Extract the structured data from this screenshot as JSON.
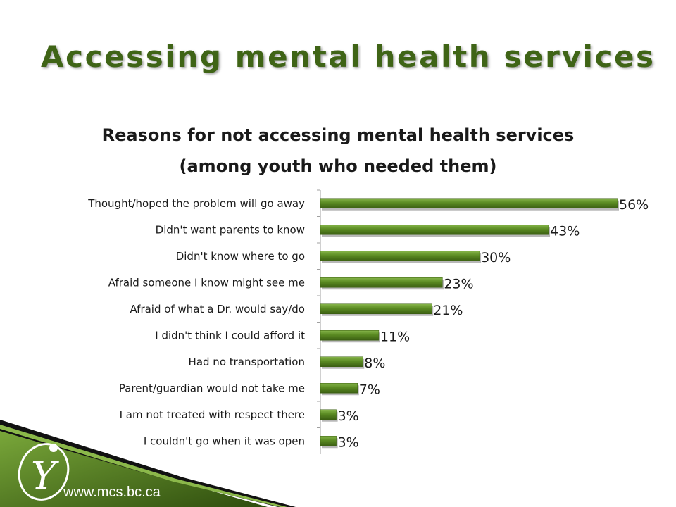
{
  "slide": {
    "title": "Accessing mental health services",
    "footer_url": "www.mcs.bc.ca",
    "accent_color": "#3f6416",
    "bar_color": "#5a8a22"
  },
  "chart_data": {
    "type": "bar",
    "orientation": "horizontal",
    "title": "Reasons for not accessing mental health services",
    "subtitle": "(among youth who needed them)",
    "categories": [
      "Thought/hoped the problem will go away",
      "Didn't want parents to know",
      "Didn't know where to go",
      "Afraid someone I know might see me",
      "Afraid of what a Dr. would say/do",
      "I didn't think I could afford it",
      "Had no transportation",
      "Parent/guardian would not take me",
      "I am not treated with respect there",
      "I couldn't go when it was open"
    ],
    "values": [
      56,
      43,
      30,
      23,
      21,
      11,
      8,
      7,
      3,
      3
    ],
    "data_labels": [
      "56%",
      "43%",
      "30%",
      "23%",
      "21%",
      "11%",
      "8%",
      "7%",
      "3%",
      "3%"
    ],
    "unit": "%",
    "xlim": [
      0,
      56
    ],
    "grid": false,
    "legend": "none"
  }
}
